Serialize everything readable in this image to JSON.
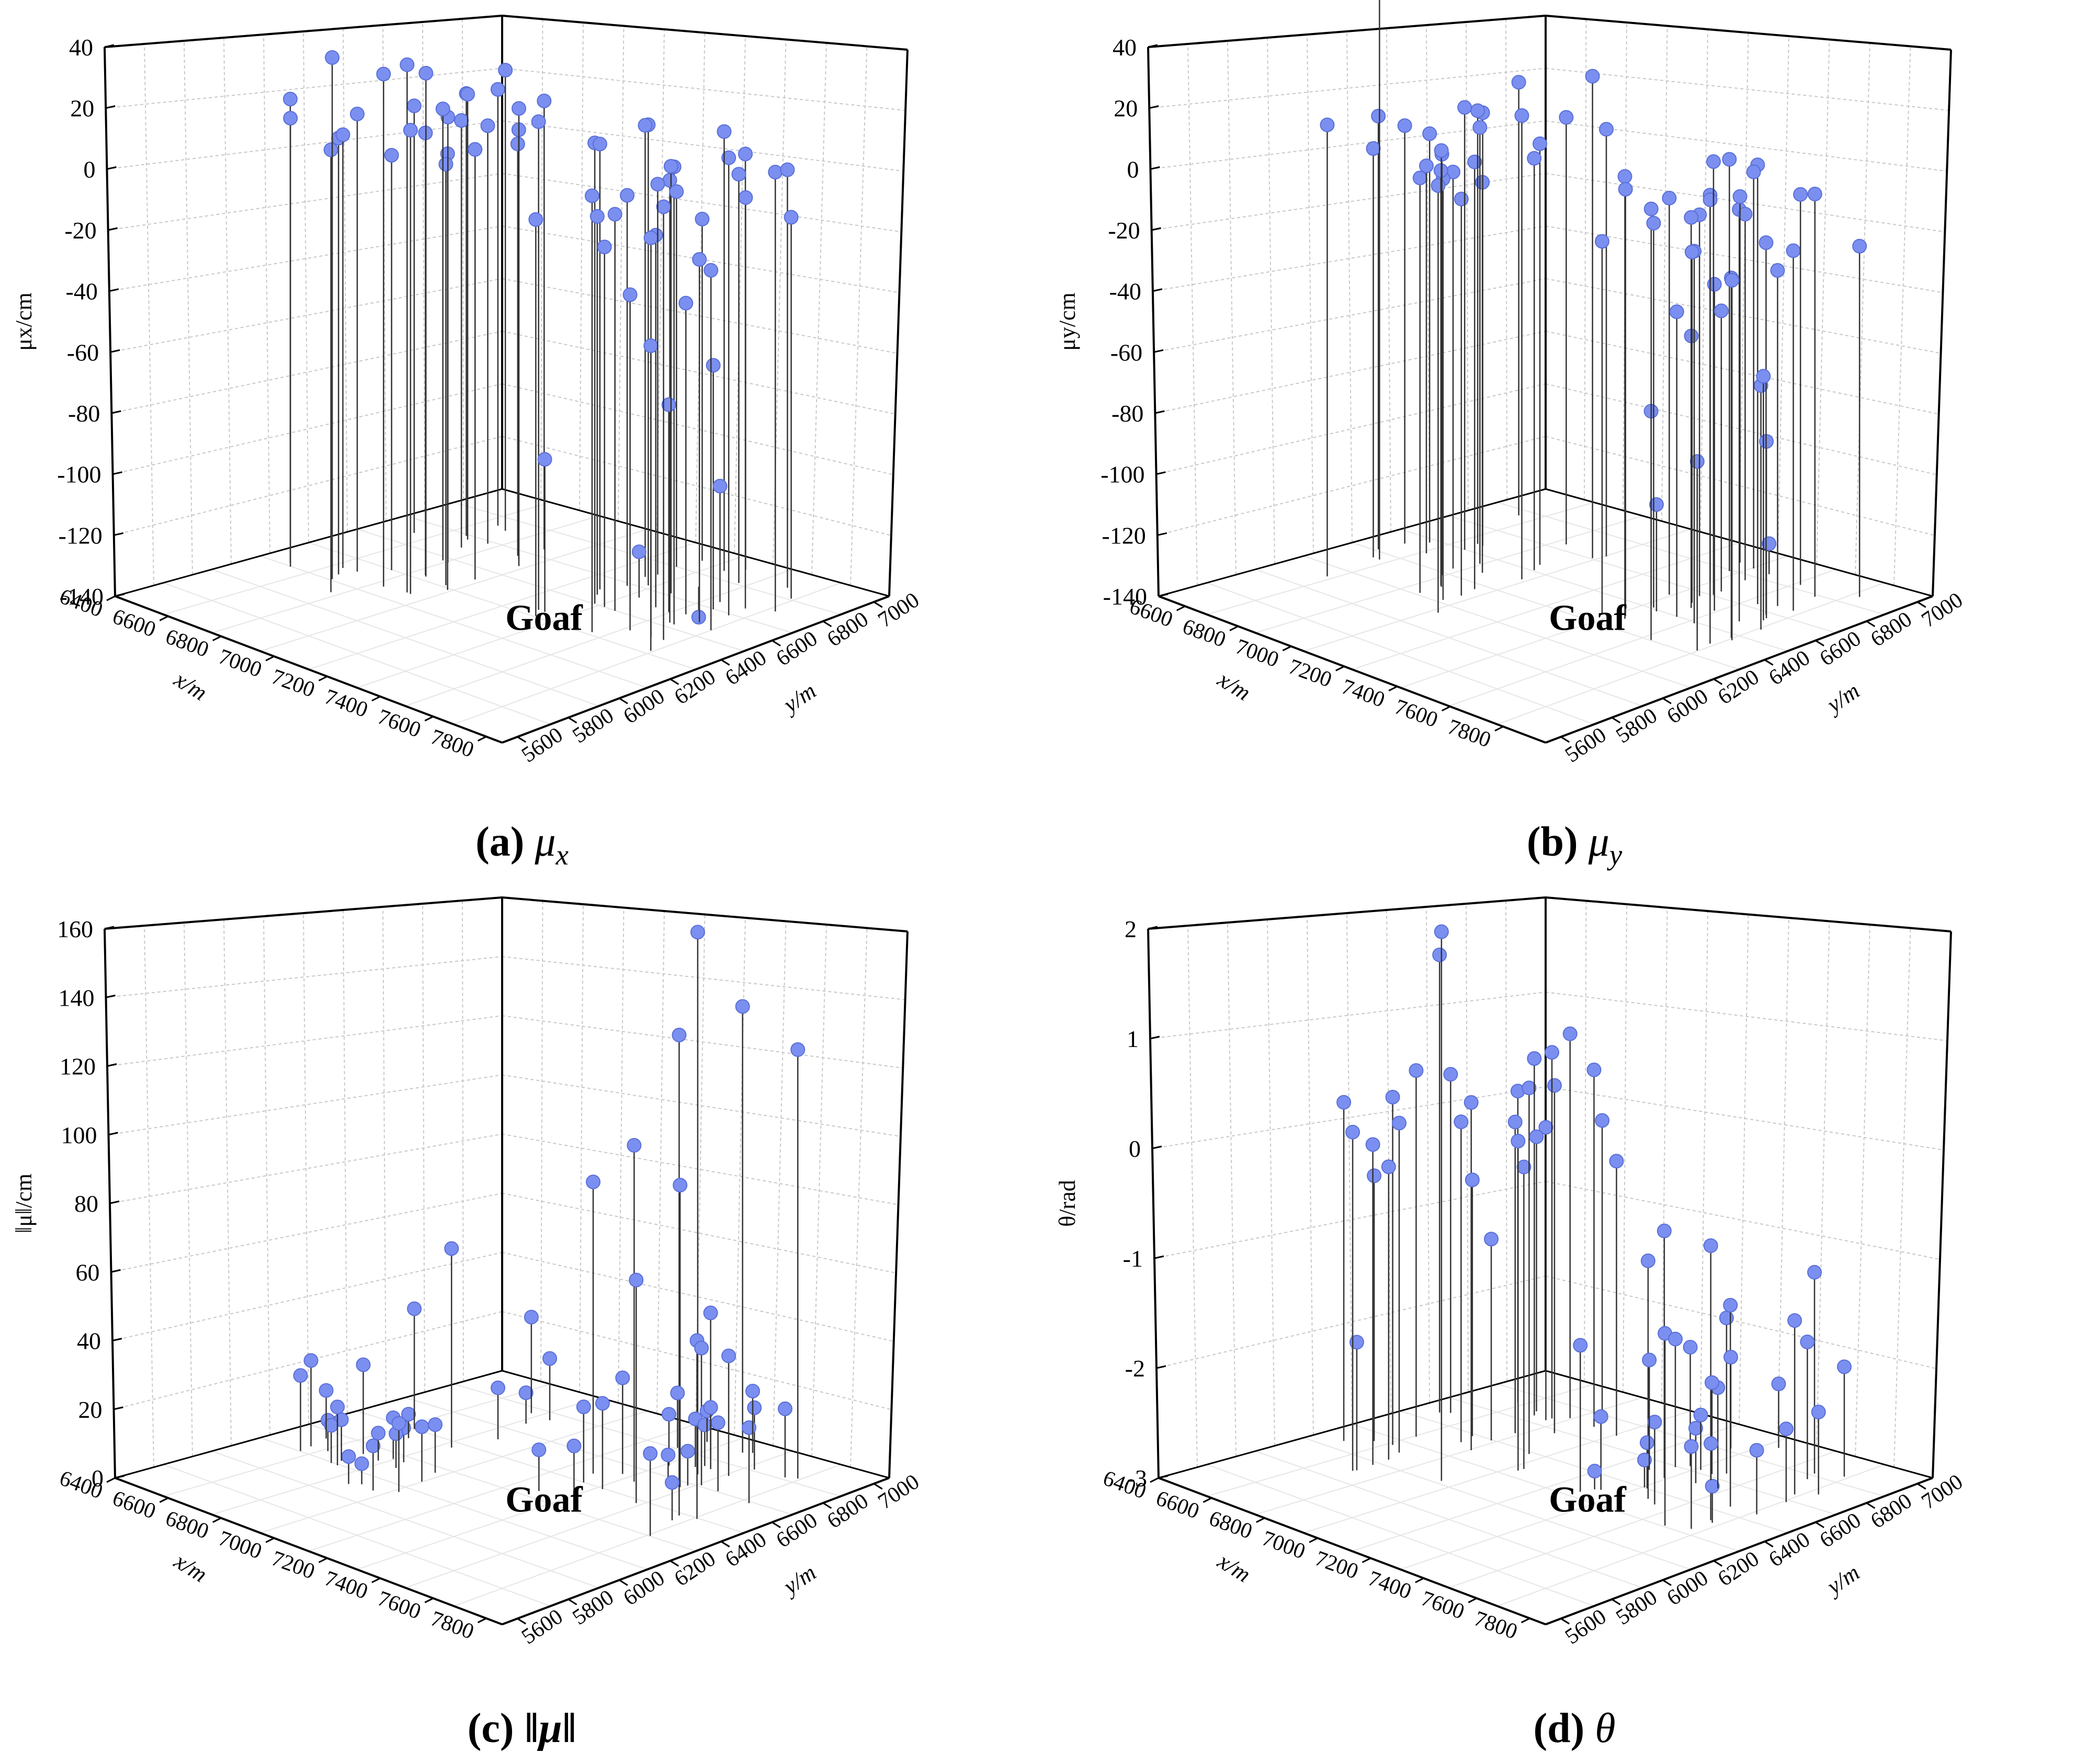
{
  "figure": {
    "colors": {
      "marker": "#7b8ff0",
      "marker_stroke": "#5a6fd8",
      "stem": "#333333",
      "grid": "#c8c8c8",
      "axis": "#000000"
    }
  },
  "captions": [
    {
      "label": "(a)",
      "symbol": "μ",
      "sub": "x"
    },
    {
      "label": "(b)",
      "symbol": "μ",
      "sub": "y"
    },
    {
      "label": "(c)",
      "symbol": "‖μ‖",
      "sub": ""
    },
    {
      "label": "(d)",
      "symbol": "θ",
      "sub": ""
    }
  ],
  "chart_data": [
    {
      "type": "scatter",
      "subtype": "3d-stem",
      "title": "(a) μx",
      "zlabel": "μx/cm",
      "xlabel": "x/m",
      "ylabel": "y/m",
      "annotation": "Goaf",
      "zlim": [
        -140,
        40
      ],
      "zticks": [
        "40",
        "20",
        "0",
        "-20",
        "-40",
        "-60",
        "-80",
        "-100",
        "-120",
        "-140"
      ],
      "xticks": [
        "6400",
        "6600",
        "6800",
        "7000",
        "7200",
        "7400",
        "7600",
        "7800"
      ],
      "yticks": [
        "5600",
        "5800",
        "6000",
        "6200",
        "6400",
        "6600",
        "6800",
        "7000"
      ],
      "series": [
        {
          "name": "left group",
          "values": [
            3,
            0,
            -5,
            5,
            3,
            -2,
            5,
            0,
            6,
            1,
            7,
            3,
            8,
            5,
            10,
            12,
            11,
            7,
            28,
            31,
            33,
            25,
            10,
            12,
            -4,
            2,
            -3,
            6,
            1
          ]
        },
        {
          "name": "right group",
          "values": [
            11,
            10,
            20,
            11,
            9,
            8,
            10,
            6,
            4,
            3,
            5,
            -12,
            -18,
            -10,
            -9,
            -16,
            -30,
            -38,
            -60,
            -72,
            -90,
            -102,
            -125,
            -150,
            -22,
            -28,
            -40,
            2,
            0,
            4,
            -3,
            -18,
            -22,
            -10,
            -6,
            -12,
            -15,
            -17,
            -21
          ]
        }
      ]
    },
    {
      "type": "scatter",
      "subtype": "3d-stem",
      "title": "(b) μy",
      "zlabel": "μy/cm",
      "xlabel": "x/m",
      "ylabel": "y/m",
      "annotation": "Goaf",
      "zlim": [
        -140,
        40
      ],
      "zticks": [
        "40",
        "20",
        "0",
        "-20",
        "-40",
        "-60",
        "-80",
        "-100",
        "-120",
        "-140"
      ],
      "xticks": [
        "6600",
        "6800",
        "7000",
        "7200",
        "7400",
        "7600",
        "7800"
      ],
      "yticks": [
        "5600",
        "5800",
        "6000",
        "6200",
        "6400",
        "6600",
        "6800",
        "7000"
      ],
      "series": [
        {
          "name": "left group",
          "values": [
            0,
            -4,
            -10,
            -12,
            -6,
            2,
            -2,
            -6,
            -10,
            -2,
            0,
            2,
            -5,
            -3,
            0,
            2,
            -4,
            0,
            3,
            8,
            2,
            18,
            12,
            -2,
            3,
            46,
            5,
            -13
          ]
        },
        {
          "name": "right group",
          "values": [
            5,
            -5,
            7,
            4,
            -10,
            -25,
            -33,
            -60,
            -82,
            -105,
            -130,
            -18,
            -20,
            -30,
            -15,
            -22,
            -40,
            -48,
            -55,
            -60,
            -65,
            -78,
            -10,
            -15,
            -20,
            -22,
            -8,
            -5,
            0,
            2,
            -12,
            -18,
            -25,
            -10,
            -14,
            -18,
            -22,
            -12
          ]
        }
      ]
    },
    {
      "type": "scatter",
      "subtype": "3d-stem",
      "title": "(c) ‖μ‖",
      "zlabel": "‖μ‖/cm",
      "xlabel": "x/m",
      "ylabel": "y/m",
      "annotation": "Goaf",
      "zlim": [
        0,
        160
      ],
      "zticks": [
        "160",
        "140",
        "120",
        "100",
        "80",
        "60",
        "40",
        "20",
        "0"
      ],
      "xticks": [
        "6400",
        "6600",
        "6800",
        "7000",
        "7200",
        "7400",
        "7600",
        "7800"
      ],
      "yticks": [
        "5600",
        "5800",
        "6000",
        "6200",
        "6400",
        "6600",
        "6800",
        "7000"
      ],
      "series": [
        {
          "name": "left group",
          "values": [
            10,
            8,
            12,
            6,
            14,
            9,
            11,
            7,
            13,
            16,
            8,
            12,
            18,
            10,
            15,
            20,
            22,
            9,
            25,
            35,
            58,
            28,
            26,
            14,
            17
          ]
        },
        {
          "name": "right group",
          "values": [
            20,
            42,
            25,
            24,
            18,
            16,
            85,
            130,
            140,
            158,
            125,
            98,
            88,
            65,
            52,
            40,
            35,
            28,
            22,
            18,
            15,
            12,
            14,
            10,
            16,
            20,
            12,
            8,
            11,
            9,
            18,
            22
          ]
        }
      ]
    },
    {
      "type": "scatter",
      "subtype": "3d-stem",
      "title": "(d) θ",
      "zlabel": "θ/rad",
      "xlabel": "x/m",
      "ylabel": "y/m",
      "annotation": "Goaf",
      "zlim": [
        -3.2,
        2.8
      ],
      "zticks": [
        "2",
        "1",
        "0",
        "-1",
        "-2",
        "-3"
      ],
      "xticks": [
        "6400",
        "6600",
        "6800",
        "7000",
        "7200",
        "7400",
        "7600",
        "7800"
      ],
      "yticks": [
        "5600",
        "5800",
        "6000",
        "6200",
        "6400",
        "6600",
        "6800",
        "7000"
      ],
      "series": [
        {
          "name": "left group",
          "values": [
            1.8,
            -0.3,
            -1.8,
            -1.0,
            0.6,
            0.0,
            0.2,
            0.6,
            1.0,
            0.8,
            0.3,
            -0.2,
            0.5,
            0.2,
            0.1,
            0.4,
            0.8,
            0.5,
            0.4,
            0.6,
            0.7,
            0.8,
            0.5,
            0.3,
            0.1,
            -0.2,
            -0.4,
            0.0,
            2.8,
            0.7
          ]
        },
        {
          "name": "right group",
          "values": [
            -0.2,
            -0.5,
            -1.0,
            -1.5,
            -1.0,
            -1.1,
            -0.6,
            -1.3,
            -1.6,
            -1.8,
            -2.0,
            -2.3,
            -2.5,
            -2.2,
            -2.4,
            -2.7,
            -2.8,
            -2.9,
            -2.5,
            -2.1,
            -1.9,
            -2.3,
            -2.6,
            -2.4,
            -2.0,
            -1.7,
            -2.2,
            -2.8,
            -3.0,
            -2.6,
            -2.3
          ]
        }
      ]
    }
  ]
}
